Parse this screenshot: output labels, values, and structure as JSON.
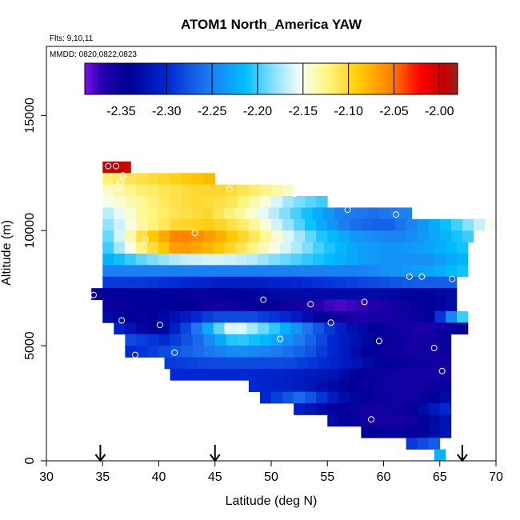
{
  "chart_data": {
    "type": "heatmap",
    "title": "ATOM1 North_America YAW",
    "subtitle_lines": [
      "Flts: 9,10,11",
      "MMDD: 0820,0822,0823"
    ],
    "xlabel": "Latitude (deg N)",
    "ylabel": "Altitude (m)",
    "xlim": [
      30,
      70
    ],
    "ylim": [
      0,
      18000
    ],
    "x_ticks": [
      30,
      35,
      40,
      45,
      50,
      55,
      60,
      65,
      70
    ],
    "y_ticks": [
      0,
      5000,
      10000,
      15000
    ],
    "colorbar": {
      "min": -2.39,
      "max": -1.98,
      "ticks": [
        -2.35,
        -2.3,
        -2.25,
        -2.2,
        -2.15,
        -2.1,
        -2.05,
        -2.0
      ],
      "tick_labels": [
        "-2.35",
        "-2.30",
        "-2.25",
        "-2.20",
        "-2.15",
        "-2.10",
        "-2.05",
        "-2.00"
      ]
    },
    "arrow_latitudes": [
      34.8,
      45,
      67
    ],
    "bands": [
      {
        "alt": [
          12500,
          13000
        ],
        "lat": [
          35,
          37.5
        ],
        "values": [
          -1.99,
          -2.0
        ]
      },
      {
        "alt": [
          12000,
          12500
        ],
        "lat": [
          35,
          45
        ],
        "values": [
          -2.12,
          -2.11,
          -2.1,
          -2.09,
          -2.08
        ]
      },
      {
        "alt": [
          11500,
          12000
        ],
        "lat": [
          35,
          52
        ],
        "values": [
          -2.14,
          -2.12,
          -2.11,
          -2.1,
          -2.1,
          -2.12,
          -2.14
        ]
      },
      {
        "alt": [
          11000,
          11500
        ],
        "lat": [
          35,
          55
        ],
        "values": [
          -2.15,
          -2.13,
          -2.11,
          -2.1,
          -2.11,
          -2.14,
          -2.18,
          -2.2
        ]
      },
      {
        "alt": [
          10500,
          11000
        ],
        "lat": [
          35,
          62.5
        ],
        "values": [
          -2.17,
          -2.13,
          -2.11,
          -2.1,
          -2.13,
          -2.17,
          -2.21,
          -2.25,
          -2.26,
          -2.25
        ]
      },
      {
        "alt": [
          10000,
          10500
        ],
        "lat": [
          35,
          70
        ],
        "values": [
          -2.18,
          -2.13,
          -2.1,
          -2.09,
          -2.12,
          -2.17,
          -2.22,
          -2.26,
          -2.27,
          -2.24,
          -2.2,
          -2.15
        ]
      },
      {
        "alt": [
          9500,
          10000
        ],
        "lat": [
          35,
          68
        ],
        "values": [
          -2.19,
          -2.1,
          -2.05,
          -2.07,
          -2.11,
          -2.16,
          -2.21,
          -2.24,
          -2.25,
          -2.23,
          -2.2
        ]
      },
      {
        "alt": [
          9000,
          9500
        ],
        "lat": [
          35,
          67.5
        ],
        "values": [
          -2.2,
          -2.12,
          -2.06,
          -2.08,
          -2.12,
          -2.16,
          -2.2,
          -2.23,
          -2.24,
          -2.23,
          -2.21
        ]
      },
      {
        "alt": [
          8500,
          9000
        ],
        "lat": [
          35,
          67.5
        ],
        "values": [
          -2.22,
          -2.19,
          -2.17,
          -2.16,
          -2.17,
          -2.19,
          -2.21,
          -2.23,
          -2.24,
          -2.24,
          -2.22
        ]
      },
      {
        "alt": [
          8000,
          8500
        ],
        "lat": [
          35,
          67.5
        ],
        "values": [
          -2.25,
          -2.25,
          -2.25,
          -2.25,
          -2.25,
          -2.25,
          -2.25,
          -2.25,
          -2.24,
          -2.23,
          -2.21
        ]
      },
      {
        "alt": [
          7500,
          8000
        ],
        "lat": [
          35,
          66.5
        ],
        "values": [
          -2.29,
          -2.29,
          -2.3,
          -2.31,
          -2.31,
          -2.3,
          -2.29,
          -2.28,
          -2.27,
          -2.27
        ]
      },
      {
        "alt": [
          7000,
          7500
        ],
        "lat": [
          34,
          66.5
        ],
        "values": [
          -2.35,
          -2.34,
          -2.34,
          -2.35,
          -2.34,
          -2.33,
          -2.33,
          -2.33,
          -2.33,
          -2.34,
          -2.33
        ]
      },
      {
        "alt": [
          6500,
          7000
        ],
        "lat": [
          35,
          66.5
        ],
        "values": [
          -2.35,
          -2.34,
          -2.34,
          -2.36,
          -2.34,
          -2.36,
          -2.38,
          -2.37,
          -2.35,
          -2.33
        ]
      },
      {
        "alt": [
          6000,
          6500
        ],
        "lat": [
          35,
          67.5
        ],
        "values": [
          -2.33,
          -2.35,
          -2.32,
          -2.28,
          -2.28,
          -2.3,
          -2.34,
          -2.37,
          -2.36,
          -2.35,
          -2.2
        ]
      },
      {
        "alt": [
          5500,
          6000
        ],
        "lat": [
          36,
          67.5
        ],
        "values": [
          -2.31,
          -2.35,
          -2.26,
          -2.15,
          -2.2,
          -2.26,
          -2.32,
          -2.35,
          -2.37,
          -2.34
        ]
      },
      {
        "alt": [
          5000,
          5500
        ],
        "lat": [
          37,
          66
        ],
        "values": [
          -2.28,
          -2.3,
          -2.26,
          -2.2,
          -2.22,
          -2.26,
          -2.31,
          -2.34,
          -2.36,
          -2.35
        ]
      },
      {
        "alt": [
          4500,
          5000
        ],
        "lat": [
          37,
          66
        ],
        "values": [
          -2.3,
          -2.28,
          -2.26,
          -2.24,
          -2.25,
          -2.27,
          -2.31,
          -2.35,
          -2.36,
          -2.35
        ]
      },
      {
        "alt": [
          4000,
          4500
        ],
        "lat": [
          40.5,
          66
        ],
        "values": [
          -2.29,
          -2.28,
          -2.28,
          -2.28,
          -2.3,
          -2.33,
          -2.35,
          -2.36
        ]
      },
      {
        "alt": [
          3500,
          4000
        ],
        "lat": [
          41,
          66
        ],
        "values": [
          -2.3,
          -2.3,
          -2.3,
          -2.31,
          -2.32,
          -2.35,
          -2.36,
          -2.36
        ]
      },
      {
        "alt": [
          3000,
          3500
        ],
        "lat": [
          48,
          66
        ],
        "values": [
          -2.3,
          -2.31,
          -2.33,
          -2.35,
          -2.36,
          -2.35
        ]
      },
      {
        "alt": [
          2500,
          3000
        ],
        "lat": [
          49,
          66
        ],
        "values": [
          -2.3,
          -2.26,
          -2.32,
          -2.35,
          -2.36,
          -2.33
        ]
      },
      {
        "alt": [
          2000,
          2500
        ],
        "lat": [
          52,
          66
        ],
        "values": [
          -2.31,
          -2.34,
          -2.36,
          -2.35,
          -2.3
        ]
      },
      {
        "alt": [
          1500,
          2000
        ],
        "lat": [
          55,
          66
        ],
        "values": [
          -2.33,
          -2.36,
          -2.36,
          -2.32
        ]
      },
      {
        "alt": [
          1000,
          1500
        ],
        "lat": [
          58,
          66
        ],
        "values": [
          -2.34,
          -2.35,
          -2.32
        ]
      },
      {
        "alt": [
          500,
          1000
        ],
        "lat": [
          62,
          65
        ],
        "values": [
          -2.29,
          -2.27
        ]
      },
      {
        "alt": [
          0,
          500
        ],
        "lat": [
          64.5,
          65.5
        ],
        "values": [
          -2.22
        ]
      }
    ],
    "sample_points": [
      [
        35.5,
        12800
      ],
      [
        36.2,
        12800
      ],
      [
        36.8,
        12400
      ],
      [
        36.6,
        12100
      ],
      [
        36.4,
        11900
      ],
      [
        35.3,
        11500
      ],
      [
        46.3,
        11800
      ],
      [
        52.1,
        11600
      ],
      [
        56.8,
        10900
      ],
      [
        61.1,
        10700
      ],
      [
        38.8,
        9600
      ],
      [
        43.2,
        9900
      ],
      [
        62.3,
        8000
      ],
      [
        63.4,
        8000
      ],
      [
        66.1,
        7900
      ],
      [
        34.2,
        7200
      ],
      [
        49.3,
        7000
      ],
      [
        53.5,
        6800
      ],
      [
        58.3,
        6900
      ],
      [
        36.7,
        6100
      ],
      [
        40.1,
        5900
      ],
      [
        55.3,
        6000
      ],
      [
        46.1,
        5800
      ],
      [
        50.8,
        5300
      ],
      [
        59.6,
        5200
      ],
      [
        64.5,
        4900
      ],
      [
        41.4,
        4700
      ],
      [
        37.9,
        4600
      ],
      [
        65.2,
        3900
      ],
      [
        58.9,
        1800
      ]
    ]
  }
}
